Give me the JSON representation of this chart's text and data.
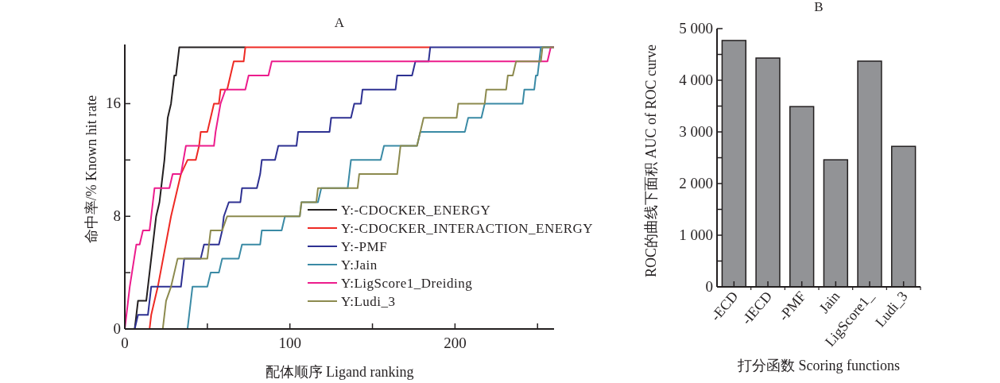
{
  "chart_data": [
    {
      "type": "line",
      "title": "A",
      "xlabel": "配体顺序 Ligand ranking",
      "ylabel": "命中率/% Known hit rate",
      "xlim": [
        0,
        260
      ],
      "ylim": [
        0,
        20.2
      ],
      "xticks": [
        0,
        {
          "value": 50,
          "label": null
        },
        100,
        {
          "value": 150,
          "label": null
        },
        200,
        {
          "value": 250,
          "label": null
        }
      ],
      "yticks": [
        0,
        {
          "value": 4,
          "label": null
        },
        8,
        {
          "value": 12,
          "label": null
        },
        16
      ],
      "legend": "bottom right",
      "series": [
        {
          "name": "Y:-CDOCKER_ENERGY",
          "color": "#231f20",
          "x": [
            0,
            6,
            8,
            13,
            18,
            19,
            21,
            22,
            24,
            26,
            28,
            30,
            31,
            33,
            73
          ],
          "values": [
            0,
            0,
            2,
            2,
            7,
            8,
            9,
            10,
            12,
            15,
            16,
            18,
            18,
            20,
            20
          ]
        },
        {
          "name": "Y:-CDOCKER_INTERACTION_ENERGY",
          "color": "#ee2a24",
          "x": [
            0,
            15,
            16,
            18,
            20,
            28,
            30,
            34,
            38,
            43,
            45,
            46,
            50,
            52,
            54,
            57,
            58,
            62,
            64,
            66,
            72,
            73,
            185
          ],
          "values": [
            0,
            0,
            1,
            2,
            3,
            8,
            9,
            11,
            12,
            12,
            13,
            14,
            14,
            15,
            16,
            16,
            17,
            17,
            18,
            19,
            19,
            20,
            20
          ]
        },
        {
          "name": "Y:-PMF",
          "color": "#2e3192",
          "x": [
            0,
            6,
            8,
            14,
            16,
            34,
            36,
            46,
            48,
            57,
            59,
            60,
            63,
            70,
            71,
            80,
            82,
            83,
            91,
            93,
            104,
            105,
            124,
            125,
            137,
            139,
            143,
            144,
            164,
            165,
            174,
            176,
            184,
            185,
            260
          ],
          "values": [
            0,
            0,
            1,
            1,
            3,
            3,
            5,
            5,
            6,
            6,
            7,
            8,
            9,
            9,
            10,
            10,
            11,
            12,
            12,
            13,
            13,
            14,
            14,
            15,
            15,
            16,
            16,
            17,
            17,
            18,
            18,
            19,
            19,
            20,
            20
          ]
        },
        {
          "name": "Y:Jain",
          "color": "#3a8aa5",
          "x": [
            0,
            38,
            41,
            50,
            52,
            57,
            59,
            69,
            71,
            82,
            83,
            95,
            97,
            106,
            107,
            117,
            119,
            135,
            137,
            155,
            157,
            177,
            179,
            206,
            208,
            216,
            218,
            241,
            242,
            248,
            249,
            250,
            251,
            252,
            260
          ],
          "values": [
            0,
            0,
            3,
            3,
            4,
            4,
            5,
            5,
            6,
            6,
            7,
            7,
            8,
            8,
            9,
            9,
            10,
            10,
            12,
            12,
            13,
            13,
            14,
            14,
            15,
            15,
            16,
            16,
            17,
            17,
            18,
            18,
            19,
            20,
            20
          ]
        },
        {
          "name": "Y:LigScore1_Dreiding",
          "color": "#ec1c8c",
          "x": [
            0,
            3,
            7,
            9,
            11,
            15,
            17,
            18,
            27,
            29,
            34,
            37,
            54,
            55,
            58,
            61,
            73,
            75,
            87,
            89,
            256,
            258,
            260
          ],
          "values": [
            0,
            3,
            6,
            6,
            7,
            7,
            9,
            10,
            10,
            11,
            11,
            13,
            13,
            14,
            16,
            17,
            17,
            18,
            18,
            19,
            19,
            20,
            20
          ]
        },
        {
          "name": "Y:Ludi_3",
          "color": "#8c8a4e",
          "x": [
            0,
            23,
            25,
            28,
            30,
            32,
            50,
            52,
            59,
            62,
            106,
            107,
            116,
            117,
            141,
            142,
            165,
            167,
            177,
            179,
            181,
            201,
            202,
            218,
            219,
            231,
            232,
            235,
            237,
            252,
            253,
            260
          ],
          "values": [
            0,
            0,
            2,
            3,
            4,
            5,
            5,
            7,
            7,
            8,
            8,
            9,
            9,
            10,
            10,
            11,
            11,
            13,
            13,
            14,
            15,
            15,
            16,
            16,
            17,
            17,
            18,
            18,
            19,
            19,
            20,
            20
          ]
        }
      ]
    },
    {
      "type": "bar",
      "title": "B",
      "xlabel": "打分函数 Scoring functions",
      "ylabel": "ROC的曲线下面积 AUC of ROC curve",
      "categories": [
        "-ECD",
        "-IECD",
        "-PMF",
        "Jain",
        "LigScore1_",
        "Ludi_3"
      ],
      "values": [
        4770,
        4430,
        3490,
        2460,
        4370,
        2720
      ],
      "color": "#929396",
      "ylim": [
        0,
        5000
      ],
      "yticks": [
        0,
        {
          "value": 500,
          "label": null
        },
        {
          "value": 1000,
          "label": "1 000"
        },
        {
          "value": 1500,
          "label": null
        },
        {
          "value": 2000,
          "label": "2 000"
        },
        {
          "value": 2500,
          "label": null
        },
        {
          "value": 3000,
          "label": "3 000"
        },
        {
          "value": 3500,
          "label": null
        },
        {
          "value": 4000,
          "label": "4 000"
        },
        {
          "value": 4500,
          "label": null
        },
        {
          "value": 5000,
          "label": "5 000"
        }
      ]
    }
  ]
}
